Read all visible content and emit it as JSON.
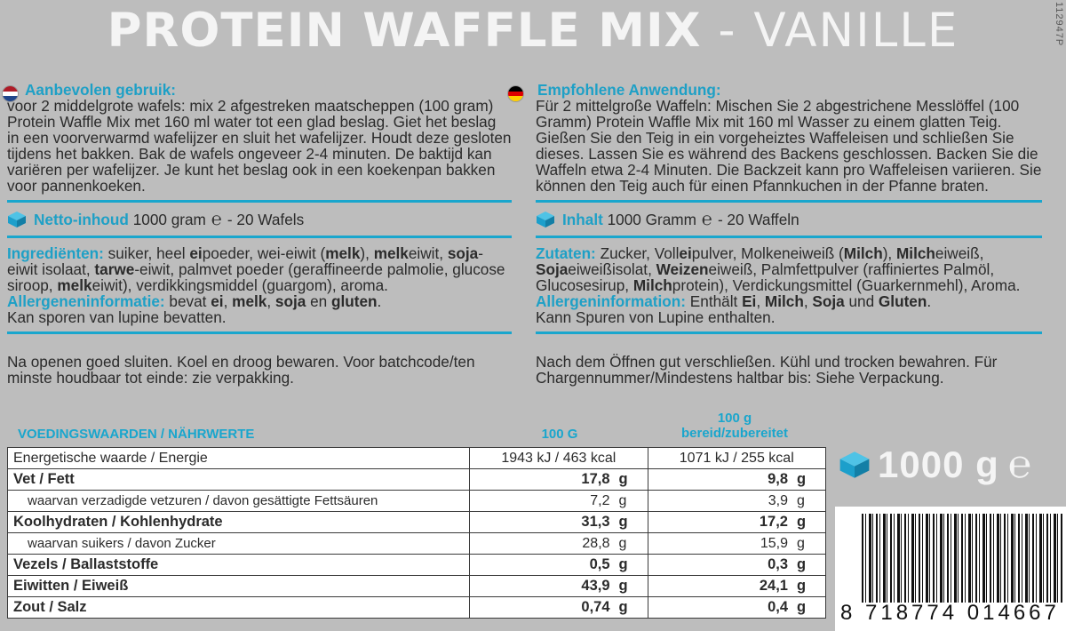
{
  "title": {
    "bold": "PROTEIN WAFFLE MIX",
    "dash": " - ",
    "flavour": "VANILLE"
  },
  "side_code": "112947P",
  "colors": {
    "accent": "#19a6cd",
    "background": "#bdbdbd",
    "title": "#f4f4f4"
  },
  "icons": [
    "nl-flag-icon",
    "de-flag-icon",
    "cube-icon",
    "estimated-sign-icon"
  ],
  "nl": {
    "usage_heading": "Aanbevolen gebruik:",
    "usage_text": "voor 2 middelgrote wafels: mix 2 afgestreken maatscheppen (100 gram) Protein Waffle Mix met 160 ml water tot een glad beslag. Giet het beslag in een voorverwarmd wafelijzer en sluit het wafelijzer. Houdt deze gesloten tijdens het bakken. Bak de wafels ongeveer 2-4 minuten. De baktijd kan variëren per wafelijzer. Je kunt het beslag ook in een koekenpan bakken voor pannenkoeken.",
    "content_label": "Netto-inhoud",
    "content_value": "1000 gram",
    "e_mark": "℮",
    "content_count": "- 20 Wafels",
    "ing_heading": "Ingrediënten:",
    "ing_segments": [
      {
        "t": " suiker, heel ",
        "b": false
      },
      {
        "t": "ei",
        "b": true
      },
      {
        "t": "poeder, wei-eiwit (",
        "b": false
      },
      {
        "t": "melk",
        "b": true
      },
      {
        "t": "), ",
        "b": false
      },
      {
        "t": "melk",
        "b": true
      },
      {
        "t": "eiwit, ",
        "b": false
      },
      {
        "t": "soja",
        "b": true
      },
      {
        "t": "-eiwit isolaat, ",
        "b": false
      },
      {
        "t": "tarwe",
        "b": true
      },
      {
        "t": "-eiwit, palmvet poeder (geraffineerde palmolie, glucose siroop, ",
        "b": false
      },
      {
        "t": "melk",
        "b": true
      },
      {
        "t": "eiwit), verdikkingsmiddel (guargom), aroma.",
        "b": false
      }
    ],
    "allergen_heading": "Allergeneninformatie:",
    "allergen_segments": [
      {
        "t": " bevat ",
        "b": false
      },
      {
        "t": "ei",
        "b": true
      },
      {
        "t": ", ",
        "b": false
      },
      {
        "t": "melk",
        "b": true
      },
      {
        "t": ", ",
        "b": false
      },
      {
        "t": "soja",
        "b": true
      },
      {
        "t": " en ",
        "b": false
      },
      {
        "t": "gluten",
        "b": true
      },
      {
        "t": ".",
        "b": false
      }
    ],
    "allergen_trace": "Kan sporen van lupine bevatten.",
    "storage": "Na openen goed sluiten. Koel en droog bewaren. Voor batchcode/ten minste houdbaar tot einde: zie verpakking."
  },
  "de": {
    "usage_heading": "Empfohlene Anwendung:",
    "usage_text": "Für 2 mittelgroße Waffeln: Mischen Sie 2 abgestrichene Messlöffel (100 Gramm) Protein Waffle Mix mit 160 ml Wasser zu einem glatten Teig. Gießen Sie den Teig in ein vorgeheiztes Waffeleisen und schließen Sie dieses. Lassen Sie es während des Backens geschlossen. Backen Sie die Waffeln etwa 2-4 Minuten. Die Backzeit kann pro Waffeleisen variieren. Sie können den Teig auch für einen Pfannkuchen in der Pfanne braten.",
    "content_label": "Inhalt",
    "content_value": "1000 Gramm",
    "e_mark": "℮",
    "content_count": "- 20 Waffeln",
    "ing_heading": "Zutaten:",
    "ing_segments": [
      {
        "t": " Zucker, Voll",
        "b": false
      },
      {
        "t": "ei",
        "b": true
      },
      {
        "t": "pulver, Molkeneiweiß (",
        "b": false
      },
      {
        "t": "Milch",
        "b": true
      },
      {
        "t": "), ",
        "b": false
      },
      {
        "t": "Milch",
        "b": true
      },
      {
        "t": "eiweiß, ",
        "b": false
      },
      {
        "t": "Soja",
        "b": true
      },
      {
        "t": "eiweißisolat, ",
        "b": false
      },
      {
        "t": "Weizen",
        "b": true
      },
      {
        "t": "eiweiß, Palmfettpulver (raffiniertes Palmöl, Glucosesirup, ",
        "b": false
      },
      {
        "t": "Milch",
        "b": true
      },
      {
        "t": "protein), Verdickungsmittel (Guarkernmehl), Aroma.",
        "b": false
      }
    ],
    "allergen_heading": "Allergeninformation:",
    "allergen_segments": [
      {
        "t": " Enthält ",
        "b": false
      },
      {
        "t": "Ei",
        "b": true
      },
      {
        "t": ", ",
        "b": false
      },
      {
        "t": "Milch",
        "b": true
      },
      {
        "t": ", ",
        "b": false
      },
      {
        "t": "Soja",
        "b": true
      },
      {
        "t": " und ",
        "b": false
      },
      {
        "t": "Gluten",
        "b": true
      },
      {
        "t": ".",
        "b": false
      }
    ],
    "allergen_trace": "Kann Spuren von Lupine enthalten.",
    "storage": "Nach dem Öffnen gut verschließen. Kühl und trocken bewahren. Für Chargennummer/Mindestens haltbar bis: Siehe Verpackung."
  },
  "nutrition": {
    "heading": "VOEDINGSWAARDEN / NÄHRWERTE",
    "col_100g": "100 G",
    "col_prepared_1": "100 g",
    "col_prepared_2": "bereid/zubereitet",
    "rows": [
      {
        "label": "Energetische waarde / Energie",
        "v1": "1943 kJ / 463 kcal",
        "u1": "",
        "v2": "1071 kJ / 255 kcal",
        "u2": "",
        "type": "head"
      },
      {
        "label": "Vet / Fett",
        "v1": "17,8",
        "u1": "g",
        "v2": "9,8",
        "u2": "g",
        "type": "main"
      },
      {
        "label": "waarvan verzadigde vetzuren / davon gesättigte Fettsäuren",
        "v1": "7,2",
        "u1": "g",
        "v2": "3,9",
        "u2": "g",
        "type": "sub"
      },
      {
        "label": "Koolhydraten / Kohlenhydrate",
        "v1": "31,3",
        "u1": "g",
        "v2": "17,2",
        "u2": "g",
        "type": "main"
      },
      {
        "label": "waarvan suikers / davon Zucker",
        "v1": "28,8",
        "u1": "g",
        "v2": "15,9",
        "u2": "g",
        "type": "sub"
      },
      {
        "label": "Vezels / Ballaststoffe",
        "v1": "0,5",
        "u1": "g",
        "v2": "0,3",
        "u2": "g",
        "type": "main"
      },
      {
        "label": "Eiwitten / Eiweiß",
        "v1": "43,9",
        "u1": "g",
        "v2": "24,1",
        "u2": "g",
        "type": "main"
      },
      {
        "label": "Zout / Salz",
        "v1": "0,74",
        "u1": "g",
        "v2": "0,4",
        "u2": "g",
        "type": "main"
      }
    ]
  },
  "weight": {
    "value": "1000 g",
    "e_mark": "℮"
  },
  "barcode": {
    "digits": "8 718774 014667"
  }
}
